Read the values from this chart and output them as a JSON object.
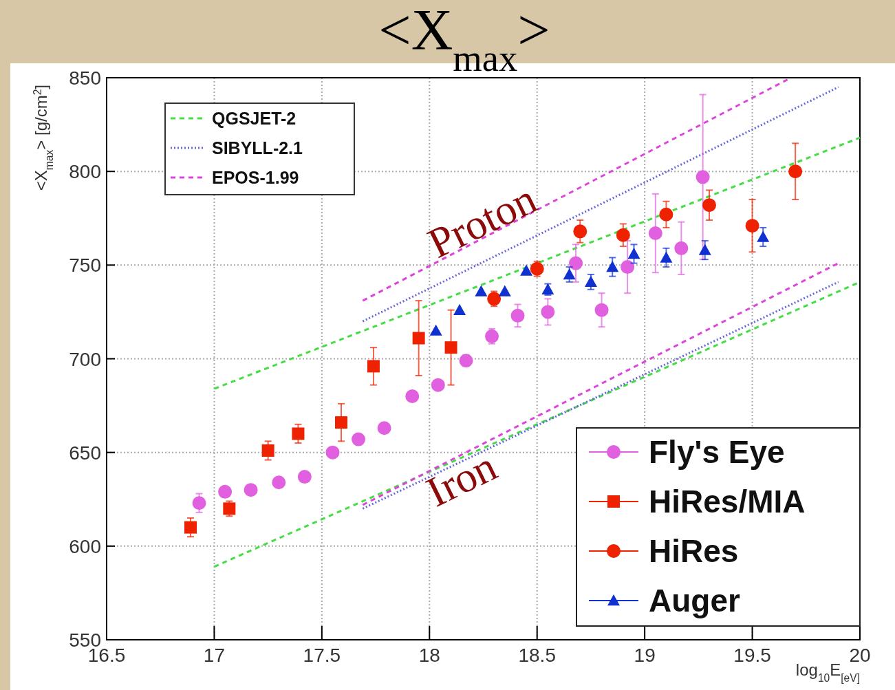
{
  "chart_data": {
    "type": "scatter",
    "title": "<X$_{max}$>",
    "xlabel": "log$_{10}$E$_{[eV]}$",
    "ylabel": "<X$_{max}$> [g/cm$^{2}$]",
    "xlim": [
      16.5,
      20
    ],
    "xticks": [
      16.5,
      17,
      17.5,
      18,
      18.5,
      19,
      19.5,
      20
    ],
    "ylim": [
      550,
      850
    ],
    "yticks": [
      550,
      600,
      650,
      700,
      750,
      800,
      850
    ],
    "grid": true,
    "legend": "bottom right",
    "annotations": [
      "Proton",
      "Iron"
    ],
    "series": [
      {
        "name": "QGSJET-2",
        "type": "line",
        "color": "#44dd44",
        "line_style": "dashed",
        "x": [
          17,
          20
        ],
        "values": [
          684,
          818
        ]
      },
      {
        "type": "line",
        "color": "#44dd44",
        "line_style": "dashed",
        "x": [
          17,
          20
        ],
        "values": [
          589,
          741
        ]
      },
      {
        "name": "SIBYLL-2.1",
        "type": "line",
        "color": "#6666dd",
        "line_style": "dotted",
        "x": [
          17.69,
          19.9
        ],
        "values": [
          720,
          845
        ]
      },
      {
        "type": "line",
        "color": "#6666dd",
        "line_style": "dotted",
        "x": [
          17.69,
          19.9
        ],
        "values": [
          620,
          741
        ]
      },
      {
        "name": "EPOS-1.99",
        "type": "line",
        "color": "#dd44dd",
        "line_style": "dashed",
        "x": [
          17.69,
          19.68
        ],
        "values": [
          731,
          850
        ]
      },
      {
        "type": "line",
        "color": "#dd44dd",
        "line_style": "dashed",
        "x": [
          17.69,
          19.9
        ],
        "values": [
          622,
          751
        ]
      },
      {
        "name": "Fly's Eye",
        "marker": "circle",
        "color": "#e060e0",
        "x": [
          16.93,
          17.05,
          17.17,
          17.3,
          17.42,
          17.55,
          17.67,
          17.79,
          17.92,
          18.04,
          18.17,
          18.29,
          18.41,
          18.55,
          18.68,
          18.8,
          18.92,
          19.05,
          19.17,
          19.27
        ],
        "values": [
          623,
          629,
          630,
          634,
          637,
          650,
          657,
          663,
          680,
          686,
          699,
          712,
          723,
          725,
          751,
          726,
          749,
          767,
          759,
          797
        ],
        "errors": [
          5,
          null,
          null,
          null,
          null,
          null,
          null,
          null,
          null,
          null,
          3,
          4,
          6,
          7,
          10,
          9,
          14,
          21,
          14,
          44
        ]
      },
      {
        "name": "HiRes/MIA",
        "marker": "square",
        "color": "#ee2200",
        "x": [
          16.89,
          17.07,
          17.25,
          17.39,
          17.59,
          17.74,
          17.95,
          18.1
        ],
        "values": [
          610,
          620,
          651,
          660,
          666,
          696,
          711,
          706
        ],
        "errors": [
          5,
          4,
          5,
          5,
          10,
          10,
          20,
          20
        ]
      },
      {
        "name": "HiRes",
        "marker": "circle",
        "color": "#ee2200",
        "x": [
          18.3,
          18.5,
          18.7,
          18.9,
          19.1,
          19.3,
          19.5,
          19.7
        ],
        "values": [
          732,
          748,
          768,
          766,
          777,
          782,
          771,
          800
        ],
        "errors": [
          4,
          4,
          6,
          6,
          7,
          8,
          14,
          15
        ]
      },
      {
        "name": "Auger",
        "marker": "triangle",
        "color": "#1030d0",
        "x": [
          18.03,
          18.14,
          18.24,
          18.35,
          18.45,
          18.55,
          18.65,
          18.75,
          18.85,
          18.95,
          19.1,
          19.28,
          19.55
        ],
        "values": [
          715,
          726,
          736,
          736,
          747,
          737,
          745,
          741,
          749,
          756,
          754,
          758,
          765
        ],
        "errors": [
          null,
          null,
          null,
          null,
          null,
          3,
          4,
          4,
          5,
          5,
          5,
          5,
          5
        ]
      }
    ]
  }
}
